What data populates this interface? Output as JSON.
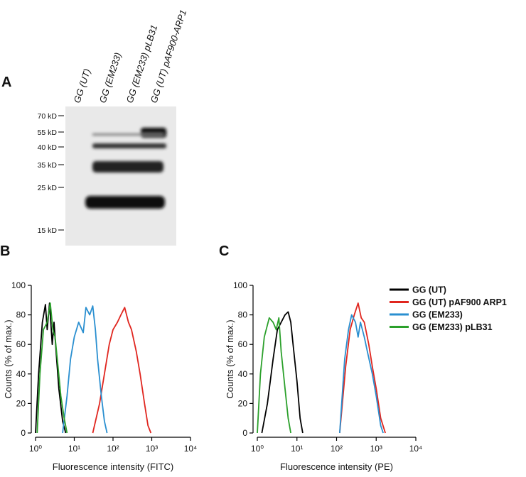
{
  "panel_a": {
    "letter": "A",
    "lanes": [
      "GG (UT)",
      "GG (EM233)",
      "GG (EM233) pLB31",
      "GG (UT) pAF900-ARP1"
    ],
    "markers": [
      "70 kD",
      "55 kD",
      "40 kD",
      "35 kD",
      "25 kD",
      "15 kD"
    ]
  },
  "chart_data": [
    {
      "type": "line",
      "letter": "B",
      "xlabel": "Fluorescence intensity (FITC)",
      "ylabel": "Counts (% of max.)",
      "xscale": "log",
      "xlim": [
        1,
        10000
      ],
      "ylim": [
        0,
        100
      ],
      "xticks": [
        {
          "value": 1,
          "label": "10⁰"
        },
        {
          "value": 10,
          "label": "10¹"
        },
        {
          "value": 100,
          "label": "10²"
        },
        {
          "value": 1000,
          "label": "10³"
        },
        {
          "value": 10000,
          "label": "10⁴"
        }
      ],
      "yticks": [
        0,
        20,
        40,
        60,
        80,
        100
      ],
      "legend": false,
      "series": [
        {
          "color": "#000000",
          "x": [
            1.0,
            1.2,
            1.5,
            1.8,
            2,
            2.3,
            2.7,
            3,
            3.5,
            4,
            5,
            6
          ],
          "values": [
            0,
            40,
            75,
            87,
            70,
            88,
            60,
            75,
            50,
            30,
            8,
            0
          ]
        },
        {
          "color": "#e0261f",
          "x": [
            30,
            45,
            60,
            80,
            100,
            130,
            160,
            200,
            250,
            300,
            400,
            500,
            650,
            800,
            950
          ],
          "values": [
            0,
            20,
            40,
            60,
            70,
            75,
            80,
            85,
            75,
            70,
            55,
            40,
            20,
            5,
            0
          ]
        },
        {
          "color": "#2a8fd0",
          "x": [
            5,
            6.5,
            8,
            10,
            13,
            17,
            20,
            25,
            30,
            35,
            40,
            50,
            60,
            70
          ],
          "values": [
            0,
            25,
            50,
            65,
            75,
            68,
            85,
            80,
            86,
            70,
            50,
            25,
            8,
            0
          ]
        },
        {
          "color": "#2ba02b",
          "x": [
            1.1,
            1.3,
            1.6,
            2,
            2.4,
            2.8,
            3.2,
            3.8,
            4.5,
            5.5,
            6.5
          ],
          "values": [
            0,
            40,
            70,
            75,
            88,
            70,
            65,
            45,
            25,
            10,
            0
          ]
        }
      ]
    },
    {
      "type": "line",
      "letter": "C",
      "xlabel": "Fluorescence intensity (PE)",
      "ylabel": "Counts (% of max.)",
      "xscale": "log",
      "xlim": [
        1,
        10000
      ],
      "ylim": [
        0,
        100
      ],
      "xticks": [
        {
          "value": 1,
          "label": "10⁰"
        },
        {
          "value": 10,
          "label": "10¹"
        },
        {
          "value": 100,
          "label": "10²"
        },
        {
          "value": 1000,
          "label": "10³"
        },
        {
          "value": 10000,
          "label": "10⁴"
        }
      ],
      "yticks": [
        0,
        20,
        40,
        60,
        80,
        100
      ],
      "legend": "upper right",
      "series": [
        {
          "name": "GG (UT)",
          "color": "#000000",
          "x": [
            1.3,
            1.8,
            2.5,
            3.2,
            4,
            5,
            6,
            7,
            8,
            10,
            12,
            14
          ],
          "values": [
            0,
            20,
            50,
            70,
            75,
            80,
            82,
            75,
            60,
            35,
            10,
            0
          ]
        },
        {
          "name": "GG (UT) pAF900 ARP1",
          "color": "#e0261f",
          "x": [
            120,
            170,
            220,
            280,
            350,
            420,
            500,
            650,
            800,
            1000,
            1300,
            1700
          ],
          "values": [
            0,
            45,
            70,
            80,
            88,
            78,
            75,
            60,
            45,
            30,
            10,
            0
          ]
        },
        {
          "name": "GG (EM233)",
          "color": "#2a8fd0",
          "x": [
            120,
            160,
            200,
            240,
            300,
            350,
            400,
            500,
            600,
            800,
            1000,
            1300,
            1500
          ],
          "values": [
            0,
            50,
            70,
            80,
            75,
            65,
            75,
            65,
            55,
            40,
            25,
            5,
            0
          ]
        },
        {
          "name": "GG (EM233) pLB31",
          "color": "#2ba02b",
          "x": [
            1,
            1.2,
            1.5,
            2,
            2.5,
            3,
            3.5,
            4,
            5,
            6,
            7
          ],
          "values": [
            0,
            40,
            65,
            78,
            75,
            70,
            78,
            55,
            30,
            10,
            0
          ]
        }
      ]
    }
  ]
}
